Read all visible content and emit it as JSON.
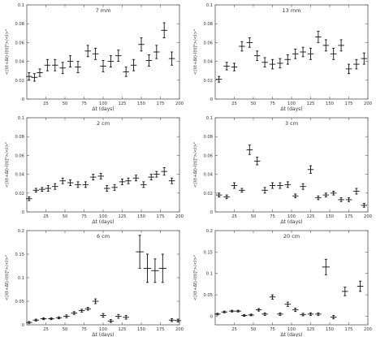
{
  "chart_data": [
    {
      "type": "scatter",
      "title": "7 mm",
      "xlabel": "Δt (days)",
      "ylabel": "<[I(t+Δt)-I(t)]²>/<I>²",
      "xlim": [
        0,
        200
      ],
      "ylim": [
        0,
        0.1
      ],
      "xticks": [
        "25",
        "50",
        "75",
        "100",
        "125",
        "150",
        "175",
        "200"
      ],
      "yticks": [
        "0",
        "0.02",
        "0.04",
        "0.06",
        "0.08",
        "0.1"
      ],
      "points": [
        {
          "x": 3,
          "y": 0.024,
          "xerr": 4,
          "yerr": 0.004
        },
        {
          "x": 10,
          "y": 0.023,
          "xerr": 4,
          "yerr": 0.004
        },
        {
          "x": 17,
          "y": 0.028,
          "xerr": 4,
          "yerr": 0.004
        },
        {
          "x": 27,
          "y": 0.036,
          "xerr": 4,
          "yerr": 0.006
        },
        {
          "x": 37,
          "y": 0.036,
          "xerr": 4,
          "yerr": 0.006
        },
        {
          "x": 47,
          "y": 0.033,
          "xerr": 4,
          "yerr": 0.006
        },
        {
          "x": 57,
          "y": 0.04,
          "xerr": 4,
          "yerr": 0.006
        },
        {
          "x": 67,
          "y": 0.034,
          "xerr": 4,
          "yerr": 0.006
        },
        {
          "x": 80,
          "y": 0.051,
          "xerr": 4,
          "yerr": 0.006
        },
        {
          "x": 90,
          "y": 0.048,
          "xerr": 4,
          "yerr": 0.006
        },
        {
          "x": 100,
          "y": 0.035,
          "xerr": 4,
          "yerr": 0.006
        },
        {
          "x": 110,
          "y": 0.04,
          "xerr": 4,
          "yerr": 0.006
        },
        {
          "x": 120,
          "y": 0.046,
          "xerr": 4,
          "yerr": 0.006
        },
        {
          "x": 130,
          "y": 0.029,
          "xerr": 4,
          "yerr": 0.005
        },
        {
          "x": 140,
          "y": 0.036,
          "xerr": 4,
          "yerr": 0.006
        },
        {
          "x": 150,
          "y": 0.058,
          "xerr": 4,
          "yerr": 0.007
        },
        {
          "x": 160,
          "y": 0.041,
          "xerr": 4,
          "yerr": 0.006
        },
        {
          "x": 170,
          "y": 0.05,
          "xerr": 4,
          "yerr": 0.007
        },
        {
          "x": 180,
          "y": 0.073,
          "xerr": 4,
          "yerr": 0.008
        },
        {
          "x": 190,
          "y": 0.043,
          "xerr": 4,
          "yerr": 0.007
        }
      ]
    },
    {
      "type": "scatter",
      "title": "13 mm",
      "xlabel": "Δt (days)",
      "ylabel": "<[I(t+Δt)-I(t)]²>/<I>²",
      "xlim": [
        0,
        200
      ],
      "ylim": [
        0,
        0.1
      ],
      "xticks": [
        "25",
        "50",
        "75",
        "100",
        "125",
        "150",
        "175",
        "200"
      ],
      "yticks": [
        "0",
        "0.02",
        "0.04",
        "0.06",
        "0.08",
        "0.1"
      ],
      "points": [
        {
          "x": 5,
          "y": 0.021,
          "xerr": 4,
          "yerr": 0.003
        },
        {
          "x": 15,
          "y": 0.035,
          "xerr": 4,
          "yerr": 0.004
        },
        {
          "x": 25,
          "y": 0.034,
          "xerr": 4,
          "yerr": 0.004
        },
        {
          "x": 35,
          "y": 0.056,
          "xerr": 4,
          "yerr": 0.005
        },
        {
          "x": 45,
          "y": 0.06,
          "xerr": 4,
          "yerr": 0.005
        },
        {
          "x": 55,
          "y": 0.046,
          "xerr": 4,
          "yerr": 0.005
        },
        {
          "x": 65,
          "y": 0.039,
          "xerr": 4,
          "yerr": 0.005
        },
        {
          "x": 75,
          "y": 0.037,
          "xerr": 4,
          "yerr": 0.005
        },
        {
          "x": 85,
          "y": 0.038,
          "xerr": 4,
          "yerr": 0.005
        },
        {
          "x": 95,
          "y": 0.042,
          "xerr": 4,
          "yerr": 0.005
        },
        {
          "x": 105,
          "y": 0.048,
          "xerr": 4,
          "yerr": 0.005
        },
        {
          "x": 115,
          "y": 0.05,
          "xerr": 4,
          "yerr": 0.005
        },
        {
          "x": 125,
          "y": 0.048,
          "xerr": 4,
          "yerr": 0.006
        },
        {
          "x": 135,
          "y": 0.066,
          "xerr": 4,
          "yerr": 0.006
        },
        {
          "x": 145,
          "y": 0.057,
          "xerr": 4,
          "yerr": 0.006
        },
        {
          "x": 155,
          "y": 0.048,
          "xerr": 4,
          "yerr": 0.006
        },
        {
          "x": 165,
          "y": 0.057,
          "xerr": 4,
          "yerr": 0.006
        },
        {
          "x": 175,
          "y": 0.032,
          "xerr": 4,
          "yerr": 0.005
        },
        {
          "x": 185,
          "y": 0.037,
          "xerr": 4,
          "yerr": 0.005
        },
        {
          "x": 195,
          "y": 0.043,
          "xerr": 4,
          "yerr": 0.006
        }
      ]
    },
    {
      "type": "scatter",
      "title": "2 cm",
      "xlabel": "Δt (days)",
      "ylabel": "<[I(t+Δt)-I(t)]²>/<I>²",
      "xlim": [
        0,
        200
      ],
      "ylim": [
        0,
        0.1
      ],
      "xticks": [
        "25",
        "50",
        "75",
        "100",
        "125",
        "150",
        "175",
        "200"
      ],
      "yticks": [
        "0",
        "0.02",
        "0.04",
        "0.06",
        "0.08",
        "0.1"
      ],
      "points": [
        {
          "x": 3,
          "y": 0.014,
          "xerr": 4,
          "yerr": 0.002
        },
        {
          "x": 12,
          "y": 0.023,
          "xerr": 4,
          "yerr": 0.002
        },
        {
          "x": 20,
          "y": 0.024,
          "xerr": 4,
          "yerr": 0.002
        },
        {
          "x": 28,
          "y": 0.025,
          "xerr": 4,
          "yerr": 0.003
        },
        {
          "x": 37,
          "y": 0.027,
          "xerr": 4,
          "yerr": 0.003
        },
        {
          "x": 47,
          "y": 0.033,
          "xerr": 4,
          "yerr": 0.003
        },
        {
          "x": 57,
          "y": 0.031,
          "xerr": 4,
          "yerr": 0.003
        },
        {
          "x": 67,
          "y": 0.029,
          "xerr": 4,
          "yerr": 0.003
        },
        {
          "x": 77,
          "y": 0.029,
          "xerr": 4,
          "yerr": 0.003
        },
        {
          "x": 87,
          "y": 0.037,
          "xerr": 4,
          "yerr": 0.003
        },
        {
          "x": 97,
          "y": 0.038,
          "xerr": 4,
          "yerr": 0.003
        },
        {
          "x": 105,
          "y": 0.025,
          "xerr": 4,
          "yerr": 0.003
        },
        {
          "x": 115,
          "y": 0.026,
          "xerr": 4,
          "yerr": 0.003
        },
        {
          "x": 125,
          "y": 0.032,
          "xerr": 4,
          "yerr": 0.003
        },
        {
          "x": 133,
          "y": 0.033,
          "xerr": 4,
          "yerr": 0.003
        },
        {
          "x": 143,
          "y": 0.036,
          "xerr": 4,
          "yerr": 0.003
        },
        {
          "x": 153,
          "y": 0.029,
          "xerr": 4,
          "yerr": 0.003
        },
        {
          "x": 163,
          "y": 0.037,
          "xerr": 4,
          "yerr": 0.003
        },
        {
          "x": 170,
          "y": 0.04,
          "xerr": 4,
          "yerr": 0.003
        },
        {
          "x": 180,
          "y": 0.043,
          "xerr": 4,
          "yerr": 0.004
        },
        {
          "x": 190,
          "y": 0.033,
          "xerr": 4,
          "yerr": 0.003
        }
      ]
    },
    {
      "type": "scatter",
      "title": "3 cm",
      "xlabel": "Δt (days)",
      "ylabel": "<[I(t+Δt)-I(t)]²>/<I>²",
      "xlim": [
        0,
        200
      ],
      "ylim": [
        0,
        0.1
      ],
      "xticks": [
        "25",
        "50",
        "75",
        "100",
        "125",
        "150",
        "175",
        "200"
      ],
      "yticks": [
        "0",
        "0.02",
        "0.04",
        "0.06",
        "0.08",
        "0.1"
      ],
      "points": [
        {
          "x": 5,
          "y": 0.018,
          "xerr": 4,
          "yerr": 0.002
        },
        {
          "x": 15,
          "y": 0.016,
          "xerr": 4,
          "yerr": 0.002
        },
        {
          "x": 25,
          "y": 0.028,
          "xerr": 4,
          "yerr": 0.003
        },
        {
          "x": 35,
          "y": 0.023,
          "xerr": 4,
          "yerr": 0.002
        },
        {
          "x": 45,
          "y": 0.066,
          "xerr": 4,
          "yerr": 0.005
        },
        {
          "x": 55,
          "y": 0.054,
          "xerr": 4,
          "yerr": 0.004
        },
        {
          "x": 65,
          "y": 0.023,
          "xerr": 4,
          "yerr": 0.003
        },
        {
          "x": 75,
          "y": 0.028,
          "xerr": 4,
          "yerr": 0.003
        },
        {
          "x": 85,
          "y": 0.028,
          "xerr": 4,
          "yerr": 0.003
        },
        {
          "x": 95,
          "y": 0.029,
          "xerr": 4,
          "yerr": 0.003
        },
        {
          "x": 105,
          "y": 0.017,
          "xerr": 4,
          "yerr": 0.002
        },
        {
          "x": 115,
          "y": 0.027,
          "xerr": 4,
          "yerr": 0.003
        },
        {
          "x": 125,
          "y": 0.045,
          "xerr": 4,
          "yerr": 0.004
        },
        {
          "x": 135,
          "y": 0.015,
          "xerr": 4,
          "yerr": 0.002
        },
        {
          "x": 145,
          "y": 0.018,
          "xerr": 4,
          "yerr": 0.002
        },
        {
          "x": 155,
          "y": 0.02,
          "xerr": 4,
          "yerr": 0.002
        },
        {
          "x": 165,
          "y": 0.013,
          "xerr": 4,
          "yerr": 0.002
        },
        {
          "x": 175,
          "y": 0.013,
          "xerr": 4,
          "yerr": 0.002
        },
        {
          "x": 185,
          "y": 0.022,
          "xerr": 4,
          "yerr": 0.003
        },
        {
          "x": 195,
          "y": 0.007,
          "xerr": 4,
          "yerr": 0.002
        }
      ]
    },
    {
      "type": "scatter",
      "title": "6 cm",
      "xlabel": "Δt (days)",
      "ylabel": "<[I(t+Δt)-I(t)]²>/<I>²",
      "xlim": [
        0,
        200
      ],
      "ylim": [
        0,
        0.2
      ],
      "xticks": [
        "25",
        "50",
        "75",
        "100",
        "125",
        "150",
        "175",
        "200"
      ],
      "yticks": [
        "0",
        "0.05",
        "0.1",
        "0.15",
        "0.2"
      ],
      "points": [
        {
          "x": 3,
          "y": 0.005,
          "xerr": 4,
          "yerr": 0.002
        },
        {
          "x": 12,
          "y": 0.01,
          "xerr": 4,
          "yerr": 0.002
        },
        {
          "x": 22,
          "y": 0.013,
          "xerr": 4,
          "yerr": 0.002
        },
        {
          "x": 32,
          "y": 0.013,
          "xerr": 4,
          "yerr": 0.002
        },
        {
          "x": 42,
          "y": 0.015,
          "xerr": 4,
          "yerr": 0.002
        },
        {
          "x": 52,
          "y": 0.018,
          "xerr": 4,
          "yerr": 0.003
        },
        {
          "x": 62,
          "y": 0.025,
          "xerr": 4,
          "yerr": 0.003
        },
        {
          "x": 72,
          "y": 0.03,
          "xerr": 4,
          "yerr": 0.003
        },
        {
          "x": 80,
          "y": 0.034,
          "xerr": 4,
          "yerr": 0.003
        },
        {
          "x": 90,
          "y": 0.05,
          "xerr": 4,
          "yerr": 0.005
        },
        {
          "x": 100,
          "y": 0.02,
          "xerr": 4,
          "yerr": 0.004
        },
        {
          "x": 110,
          "y": 0.008,
          "xerr": 4,
          "yerr": 0.003
        },
        {
          "x": 120,
          "y": 0.018,
          "xerr": 4,
          "yerr": 0.004
        },
        {
          "x": 130,
          "y": 0.016,
          "xerr": 4,
          "yerr": 0.004
        },
        {
          "x": 148,
          "y": 0.155,
          "xerr": 5,
          "yerr": 0.035
        },
        {
          "x": 158,
          "y": 0.12,
          "xerr": 5,
          "yerr": 0.03
        },
        {
          "x": 168,
          "y": 0.115,
          "xerr": 5,
          "yerr": 0.025
        },
        {
          "x": 178,
          "y": 0.12,
          "xerr": 5,
          "yerr": 0.03
        },
        {
          "x": 190,
          "y": 0.01,
          "xerr": 4,
          "yerr": 0.003
        },
        {
          "x": 198,
          "y": 0.009,
          "xerr": 4,
          "yerr": 0.003
        }
      ]
    },
    {
      "type": "scatter",
      "title": "20 cm",
      "xlabel": "Δt (days)",
      "ylabel": "<[I(t+Δt)-I(t)]²>/<I>²",
      "xlim": [
        0,
        200
      ],
      "ylim": [
        -0.02,
        0.2
      ],
      "xticks": [
        "25",
        "50",
        "75",
        "100",
        "125",
        "150",
        "175",
        "200"
      ],
      "yticks": [
        "0",
        "0.05",
        "0.1",
        "0.15",
        "0.2"
      ],
      "points": [
        {
          "x": 3,
          "y": 0.005,
          "xerr": 4,
          "yerr": 0.002
        },
        {
          "x": 12,
          "y": 0.01,
          "xerr": 4,
          "yerr": 0.002
        },
        {
          "x": 22,
          "y": 0.012,
          "xerr": 4,
          "yerr": 0.002
        },
        {
          "x": 30,
          "y": 0.012,
          "xerr": 4,
          "yerr": 0.002
        },
        {
          "x": 38,
          "y": 0.002,
          "xerr": 4,
          "yerr": 0.002
        },
        {
          "x": 47,
          "y": 0.003,
          "xerr": 4,
          "yerr": 0.002
        },
        {
          "x": 57,
          "y": 0.015,
          "xerr": 4,
          "yerr": 0.003
        },
        {
          "x": 65,
          "y": 0.005,
          "xerr": 4,
          "yerr": 0.003
        },
        {
          "x": 75,
          "y": 0.045,
          "xerr": 4,
          "yerr": 0.005
        },
        {
          "x": 85,
          "y": 0.005,
          "xerr": 4,
          "yerr": 0.003
        },
        {
          "x": 95,
          "y": 0.028,
          "xerr": 4,
          "yerr": 0.005
        },
        {
          "x": 105,
          "y": 0.015,
          "xerr": 4,
          "yerr": 0.004
        },
        {
          "x": 115,
          "y": 0.004,
          "xerr": 4,
          "yerr": 0.003
        },
        {
          "x": 125,
          "y": 0.005,
          "xerr": 4,
          "yerr": 0.003
        },
        {
          "x": 135,
          "y": 0.005,
          "xerr": 4,
          "yerr": 0.003
        },
        {
          "x": 145,
          "y": 0.115,
          "xerr": 5,
          "yerr": 0.018
        },
        {
          "x": 155,
          "y": -0.002,
          "xerr": 4,
          "yerr": 0.004
        },
        {
          "x": 170,
          "y": 0.058,
          "xerr": 4,
          "yerr": 0.01
        },
        {
          "x": 190,
          "y": 0.07,
          "xerr": 4,
          "yerr": 0.012
        }
      ]
    }
  ]
}
